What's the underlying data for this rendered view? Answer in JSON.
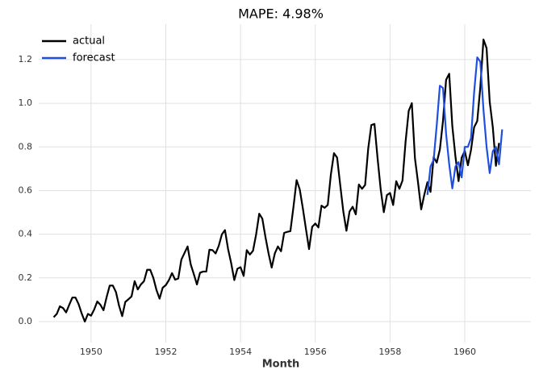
{
  "chart_data": {
    "type": "line",
    "title": "MAPE: 4.98%",
    "xlabel": "Month",
    "grid": true,
    "legend": "upper left",
    "xlim": [
      1948.6,
      1961.77
    ],
    "xticks": [
      1950,
      1952,
      1954,
      1956,
      1958,
      1960
    ],
    "ylim": [
      -0.096,
      1.362
    ],
    "yticks": [
      {
        "value": 0,
        "label": "0.0"
      },
      {
        "value": 0.2,
        "label": "0.2"
      },
      {
        "value": 0.4,
        "label": "0.4"
      },
      {
        "value": 0.6,
        "label": "0.6"
      },
      {
        "value": 0.8,
        "label": "0.8"
      },
      {
        "value": 1,
        "label": "1.0"
      },
      {
        "value": 1.2,
        "label": "1.2"
      }
    ],
    "series": [
      {
        "name": "actual",
        "color": "#000000",
        "x": [
          "1949-01",
          "1949-02",
          "1949-03",
          "1949-04",
          "1949-05",
          "1949-06",
          "1949-07",
          "1949-08",
          "1949-09",
          "1949-10",
          "1949-11",
          "1949-12",
          "1950-01",
          "1950-02",
          "1950-03",
          "1950-04",
          "1950-05",
          "1950-06",
          "1950-07",
          "1950-08",
          "1950-09",
          "1950-10",
          "1950-11",
          "1950-12",
          "1951-01",
          "1951-02",
          "1951-03",
          "1951-04",
          "1951-05",
          "1951-06",
          "1951-07",
          "1951-08",
          "1951-09",
          "1951-10",
          "1951-11",
          "1951-12",
          "1952-01",
          "1952-02",
          "1952-03",
          "1952-04",
          "1952-05",
          "1952-06",
          "1952-07",
          "1952-08",
          "1952-09",
          "1952-10",
          "1952-11",
          "1952-12",
          "1953-01",
          "1953-02",
          "1953-03",
          "1953-04",
          "1953-05",
          "1953-06",
          "1953-07",
          "1953-08",
          "1953-09",
          "1953-10",
          "1953-11",
          "1953-12",
          "1954-01",
          "1954-02",
          "1954-03",
          "1954-04",
          "1954-05",
          "1954-06",
          "1954-07",
          "1954-08",
          "1954-09",
          "1954-10",
          "1954-11",
          "1954-12",
          "1955-01",
          "1955-02",
          "1955-03",
          "1955-04",
          "1955-05",
          "1955-06",
          "1955-07",
          "1955-08",
          "1955-09",
          "1955-10",
          "1955-11",
          "1955-12",
          "1956-01",
          "1956-02",
          "1956-03",
          "1956-04",
          "1956-05",
          "1956-06",
          "1956-07",
          "1956-08",
          "1956-09",
          "1956-10",
          "1956-11",
          "1956-12",
          "1957-01",
          "1957-02",
          "1957-03",
          "1957-04",
          "1957-05",
          "1957-06",
          "1957-07",
          "1957-08",
          "1957-09",
          "1957-10",
          "1957-11",
          "1957-12",
          "1958-01",
          "1958-02",
          "1958-03",
          "1958-04",
          "1958-05",
          "1958-06",
          "1958-07",
          "1958-08",
          "1958-09",
          "1958-10",
          "1958-11",
          "1958-12",
          "1959-01",
          "1959-02",
          "1959-03",
          "1959-04",
          "1959-05",
          "1959-06",
          "1959-07",
          "1959-08",
          "1959-09",
          "1959-10",
          "1959-11",
          "1959-12",
          "1960-01",
          "1960-02",
          "1960-03",
          "1960-04",
          "1960-05",
          "1960-06",
          "1960-07",
          "1960-08",
          "1960-09",
          "1960-10",
          "1960-11",
          "1960-12"
        ],
        "values": [
          0.02,
          0.035,
          0.07,
          0.062,
          0.042,
          0.077,
          0.11,
          0.11,
          0.08,
          0.037,
          0,
          0.035,
          0.027,
          0.055,
          0.092,
          0.077,
          0.052,
          0.112,
          0.165,
          0.165,
          0.135,
          0.072,
          0.025,
          0.09,
          0.102,
          0.115,
          0.185,
          0.147,
          0.17,
          0.185,
          0.237,
          0.237,
          0.2,
          0.145,
          0.105,
          0.155,
          0.167,
          0.19,
          0.222,
          0.192,
          0.197,
          0.284,
          0.314,
          0.344,
          0.262,
          0.217,
          0.17,
          0.224,
          0.229,
          0.229,
          0.329,
          0.327,
          0.312,
          0.347,
          0.399,
          0.419,
          0.332,
          0.267,
          0.19,
          0.242,
          0.249,
          0.209,
          0.327,
          0.307,
          0.324,
          0.399,
          0.494,
          0.471,
          0.387,
          0.312,
          0.247,
          0.312,
          0.344,
          0.322,
          0.406,
          0.411,
          0.414,
          0.526,
          0.648,
          0.606,
          0.519,
          0.424,
          0.332,
          0.434,
          0.449,
          0.431,
          0.531,
          0.521,
          0.534,
          0.673,
          0.771,
          0.751,
          0.626,
          0.504,
          0.416,
          0.504,
          0.526,
          0.491,
          0.628,
          0.608,
          0.626,
          0.793,
          0.9,
          0.905,
          0.748,
          0.606,
          0.501,
          0.579,
          0.589,
          0.534,
          0.643,
          0.608,
          0.646,
          0.825,
          0.965,
          1,
          0.748,
          0.636,
          0.514,
          0.581,
          0.638,
          0.594,
          0.753,
          0.728,
          0.788,
          0.918,
          1.107,
          1.135,
          0.895,
          0.756,
          0.643,
          0.751,
          0.781,
          0.716,
          0.786,
          0.89,
          0.918,
          1.075,
          1.292,
          1.252,
          1.007,
          0.89,
          0.713,
          0.818
        ]
      },
      {
        "name": "forecast",
        "color": "#1f4fe0",
        "x": [
          "1959-01",
          "1959-02",
          "1959-03",
          "1959-04",
          "1959-05",
          "1959-06",
          "1959-07",
          "1959-08",
          "1959-09",
          "1959-10",
          "1959-11",
          "1959-12",
          "1960-01",
          "1960-02",
          "1960-03",
          "1960-04",
          "1960-05",
          "1960-06",
          "1960-07",
          "1960-08",
          "1960-09",
          "1960-10",
          "1960-11",
          "1960-12",
          "1961-01"
        ],
        "values": [
          0.58,
          0.71,
          0.74,
          0.9,
          1.08,
          1.07,
          0.86,
          0.72,
          0.61,
          0.71,
          0.73,
          0.66,
          0.8,
          0.8,
          0.84,
          1.05,
          1.21,
          1.19,
          0.97,
          0.8,
          0.68,
          0.78,
          0.8,
          0.72,
          0.88
        ]
      }
    ]
  }
}
